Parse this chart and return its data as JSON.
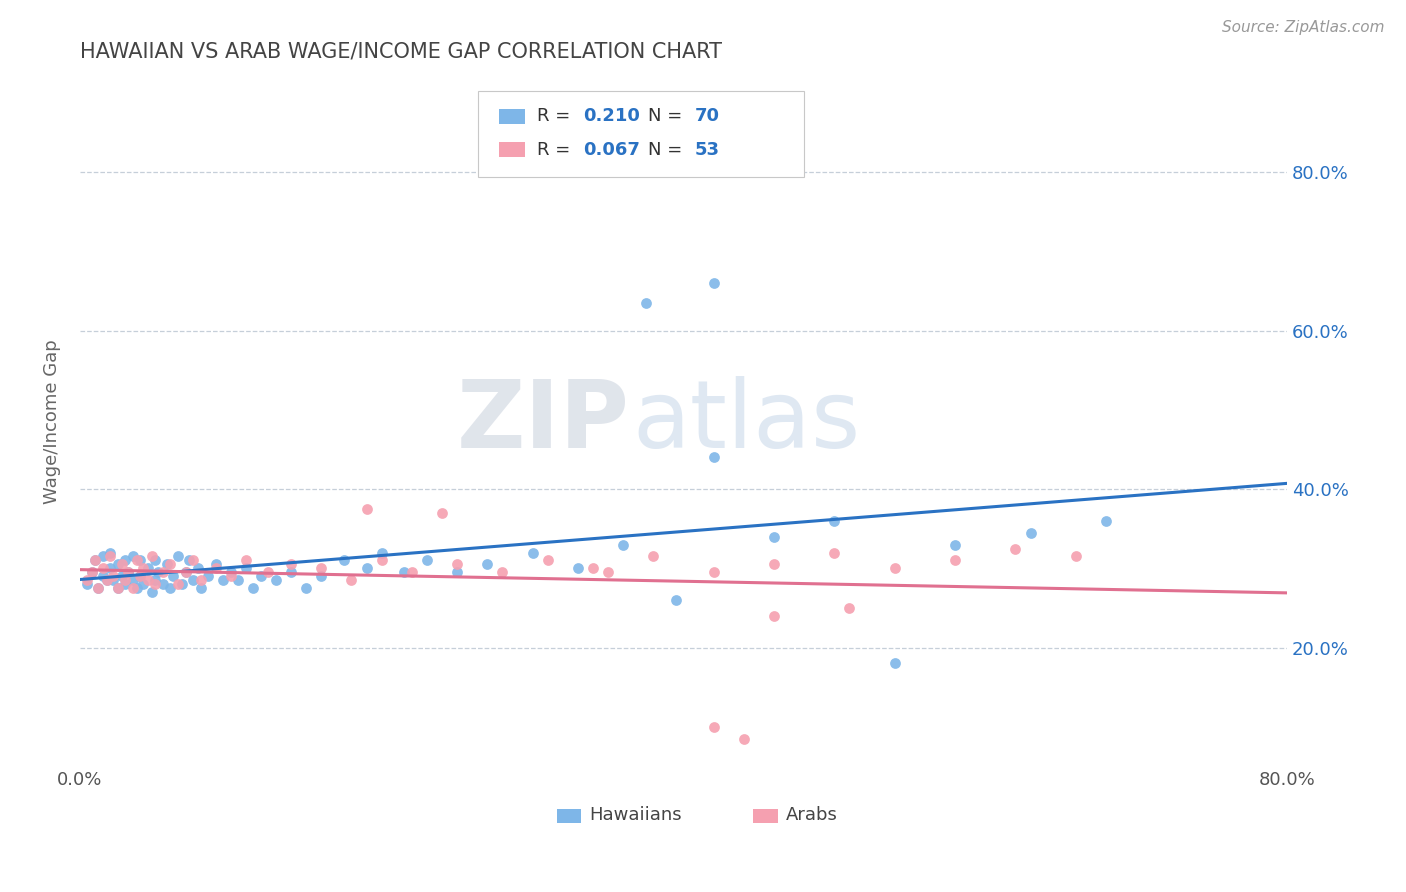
{
  "title": "HAWAIIAN VS ARAB WAGE/INCOME GAP CORRELATION CHART",
  "source": "Source: ZipAtlas.com",
  "ylabel": "Wage/Income Gap",
  "xlim": [
    0.0,
    0.8
  ],
  "ylim": [
    0.05,
    0.92
  ],
  "y_tick_positions": [
    0.2,
    0.4,
    0.6,
    0.8
  ],
  "y_tick_labels": [
    "20.0%",
    "40.0%",
    "60.0%",
    "80.0%"
  ],
  "color_hawaiian": "#7eb6e8",
  "color_arab": "#f5a0b0",
  "color_line_hawaiian": "#2a72c3",
  "color_line_arab": "#e07090",
  "background_color": "#ffffff",
  "hawaiian_x": [
    0.005,
    0.008,
    0.01,
    0.012,
    0.015,
    0.015,
    0.018,
    0.02,
    0.02,
    0.022,
    0.025,
    0.025,
    0.028,
    0.03,
    0.03,
    0.032,
    0.035,
    0.035,
    0.038,
    0.04,
    0.04,
    0.042,
    0.045,
    0.048,
    0.05,
    0.05,
    0.052,
    0.055,
    0.058,
    0.06,
    0.062,
    0.065,
    0.068,
    0.07,
    0.072,
    0.075,
    0.078,
    0.08,
    0.085,
    0.09,
    0.095,
    0.1,
    0.105,
    0.11,
    0.115,
    0.12,
    0.13,
    0.14,
    0.15,
    0.16,
    0.175,
    0.19,
    0.2,
    0.215,
    0.23,
    0.25,
    0.27,
    0.3,
    0.33,
    0.36,
    0.395,
    0.42,
    0.46,
    0.5,
    0.54,
    0.58,
    0.63,
    0.68,
    0.42,
    0.375
  ],
  "hawaiian_y": [
    0.28,
    0.295,
    0.31,
    0.275,
    0.29,
    0.315,
    0.285,
    0.3,
    0.32,
    0.285,
    0.275,
    0.305,
    0.29,
    0.28,
    0.31,
    0.295,
    0.285,
    0.315,
    0.275,
    0.29,
    0.31,
    0.28,
    0.3,
    0.27,
    0.285,
    0.31,
    0.295,
    0.28,
    0.305,
    0.275,
    0.29,
    0.315,
    0.28,
    0.295,
    0.31,
    0.285,
    0.3,
    0.275,
    0.29,
    0.305,
    0.285,
    0.295,
    0.285,
    0.3,
    0.275,
    0.29,
    0.285,
    0.295,
    0.275,
    0.29,
    0.31,
    0.3,
    0.32,
    0.295,
    0.31,
    0.295,
    0.305,
    0.32,
    0.3,
    0.33,
    0.26,
    0.44,
    0.34,
    0.36,
    0.18,
    0.33,
    0.345,
    0.36,
    0.66,
    0.635
  ],
  "arab_x": [
    0.005,
    0.008,
    0.01,
    0.012,
    0.015,
    0.018,
    0.02,
    0.022,
    0.025,
    0.028,
    0.03,
    0.032,
    0.035,
    0.038,
    0.04,
    0.042,
    0.045,
    0.048,
    0.05,
    0.055,
    0.06,
    0.065,
    0.07,
    0.075,
    0.08,
    0.09,
    0.1,
    0.11,
    0.125,
    0.14,
    0.16,
    0.18,
    0.2,
    0.22,
    0.25,
    0.28,
    0.31,
    0.34,
    0.38,
    0.42,
    0.46,
    0.5,
    0.54,
    0.58,
    0.62,
    0.66,
    0.19,
    0.35,
    0.42,
    0.24,
    0.46,
    0.51,
    0.44
  ],
  "arab_y": [
    0.285,
    0.295,
    0.31,
    0.275,
    0.3,
    0.285,
    0.315,
    0.29,
    0.275,
    0.305,
    0.285,
    0.295,
    0.275,
    0.31,
    0.29,
    0.3,
    0.285,
    0.315,
    0.28,
    0.295,
    0.305,
    0.28,
    0.295,
    0.31,
    0.285,
    0.3,
    0.29,
    0.31,
    0.295,
    0.305,
    0.3,
    0.285,
    0.31,
    0.295,
    0.305,
    0.295,
    0.31,
    0.3,
    0.315,
    0.295,
    0.305,
    0.32,
    0.3,
    0.31,
    0.325,
    0.315,
    0.375,
    0.295,
    0.1,
    0.37,
    0.24,
    0.25,
    0.085
  ]
}
